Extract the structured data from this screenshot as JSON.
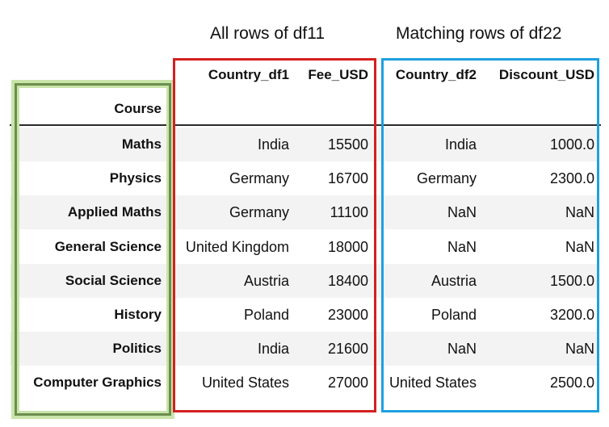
{
  "captions": {
    "left": "All rows of df11",
    "right": "Matching rows of df22"
  },
  "columns": {
    "index": "Course",
    "country_df1": "Country_df1",
    "fee_usd": "Fee_USD",
    "country_df2": "Country_df2",
    "discount_usd": "Discount_USD"
  },
  "rows": [
    {
      "course": "Maths",
      "country_df1": "India",
      "fee_usd": "15500",
      "country_df2": "India",
      "discount_usd": "1000.0"
    },
    {
      "course": "Physics",
      "country_df1": "Germany",
      "fee_usd": "16700",
      "country_df2": "Germany",
      "discount_usd": "2300.0"
    },
    {
      "course": "Applied Maths",
      "country_df1": "Germany",
      "fee_usd": "11100",
      "country_df2": "NaN",
      "discount_usd": "NaN"
    },
    {
      "course": "General Science",
      "country_df1": "United Kingdom",
      "fee_usd": "18000",
      "country_df2": "NaN",
      "discount_usd": "NaN"
    },
    {
      "course": "Social Science",
      "country_df1": "Austria",
      "fee_usd": "18400",
      "country_df2": "Austria",
      "discount_usd": "1500.0"
    },
    {
      "course": "History",
      "country_df1": "Poland",
      "fee_usd": "23000",
      "country_df2": "Poland",
      "discount_usd": "3200.0"
    },
    {
      "course": "Politics",
      "country_df1": "India",
      "fee_usd": "21600",
      "country_df2": "NaN",
      "discount_usd": "NaN"
    },
    {
      "course": "Computer Graphics",
      "country_df1": "United States",
      "fee_usd": "27000",
      "country_df2": "United States",
      "discount_usd": "2500.0"
    }
  ],
  "colors": {
    "index_highlight": "#c9e4a9",
    "index_border": "#6b8e4e",
    "df1_border": "#d42020",
    "df2_border": "#1ea0e0",
    "stripe": "#f3f3f3"
  }
}
